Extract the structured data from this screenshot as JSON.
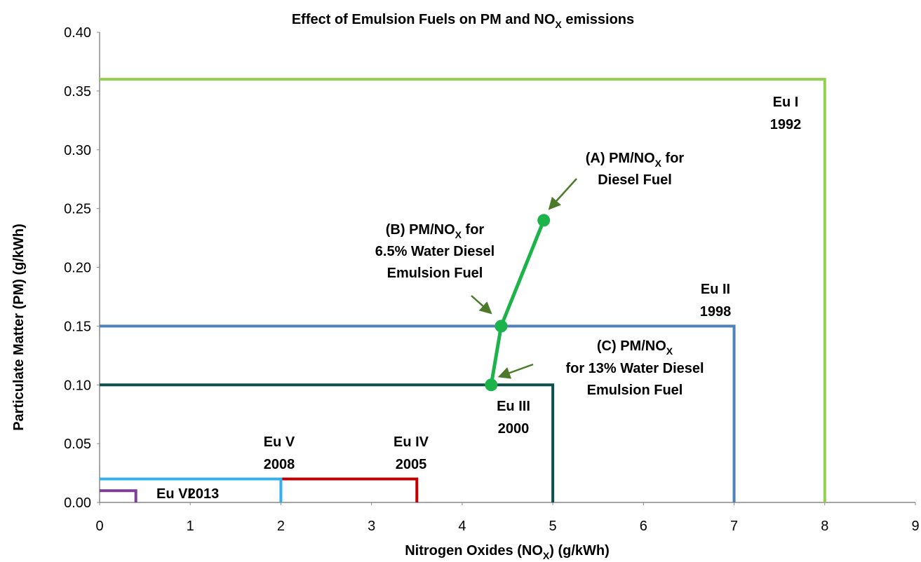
{
  "chart_data": {
    "type": "line",
    "title": [
      "Effect of Emulsion Fuels on PM and NO",
      "X",
      " emissions"
    ],
    "x_label": [
      "Nitrogen Oxides (NO",
      "X",
      ") (g/kWh)"
    ],
    "y_label": "Particulate Matter (PM) (g/kWh)",
    "xlim": [
      0,
      9
    ],
    "xticks": [
      0,
      1,
      2,
      3,
      4,
      5,
      6,
      7,
      8,
      9
    ],
    "ylim": [
      0,
      0.4
    ],
    "yticks": [
      {
        "value": 0,
        "label": "0.00"
      },
      {
        "value": 0.05,
        "label": "0.05"
      },
      {
        "value": 0.1,
        "label": "0.10"
      },
      {
        "value": 0.15,
        "label": "0.15"
      },
      {
        "value": 0.2,
        "label": "0.20"
      },
      {
        "value": 0.25,
        "label": "0.25"
      },
      {
        "value": 0.3,
        "label": "0.30"
      },
      {
        "value": 0.35,
        "label": "0.35"
      },
      {
        "value": 0.4,
        "label": "0.40"
      }
    ],
    "series": [
      {
        "name": "Eu I",
        "year": "1992",
        "color": "#92d050",
        "x": [
          0,
          8,
          8
        ],
        "values": [
          0.36,
          0.36,
          0
        ]
      },
      {
        "name": "Eu II",
        "year": "1998",
        "color": "#4f81bd",
        "x": [
          0,
          7,
          7
        ],
        "values": [
          0.15,
          0.15,
          0
        ]
      },
      {
        "name": "Eu III",
        "year": "2000",
        "color": "#0f4f4c",
        "x": [
          0,
          5,
          5
        ],
        "values": [
          0.1,
          0.1,
          0
        ]
      },
      {
        "name": "Eu IV",
        "year": "2005",
        "color": "#c00000",
        "x": [
          2,
          3.5,
          3.5
        ],
        "values": [
          0.02,
          0.02,
          0
        ]
      },
      {
        "name": "Eu V",
        "year": "2008",
        "color": "#35b0ea",
        "x": [
          0,
          2,
          2
        ],
        "values": [
          0.02,
          0.02,
          0
        ]
      },
      {
        "name": "Eu VI",
        "year": "2013",
        "color": "#7f3f98",
        "x": [
          0,
          0.4,
          0.4
        ],
        "values": [
          0.01,
          0.01,
          0
        ]
      },
      {
        "name": "PM/NOX",
        "color": "#1db34b",
        "markers": true,
        "x": [
          4.9,
          4.43,
          4.32
        ],
        "values": [
          0.24,
          0.15,
          0.1
        ]
      }
    ],
    "annotations": [
      [
        [
          "(A) PM/NO",
          "X",
          " for"
        ],
        [
          "Diesel Fuel"
        ]
      ],
      [
        [
          "(B) PM/NO",
          "X",
          " for"
        ],
        [
          "6.5% Water Diesel"
        ],
        [
          "Emulsion Fuel"
        ]
      ],
      [
        [
          "(C) PM/NO",
          "X"
        ],
        [
          "for 13% Water Diesel"
        ],
        [
          "Emulsion Fuel"
        ]
      ]
    ]
  }
}
